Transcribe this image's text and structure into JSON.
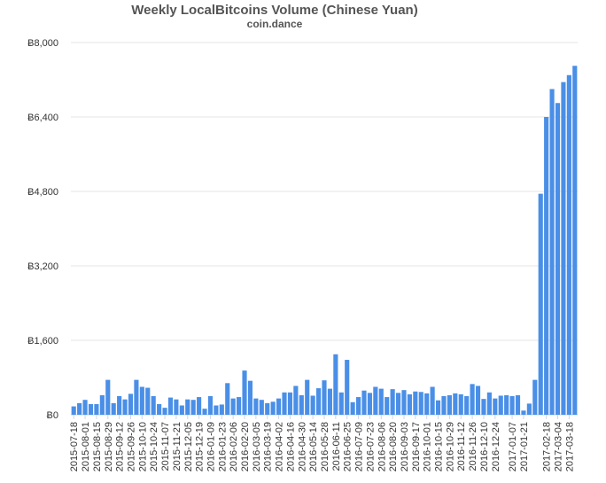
{
  "chart_data": {
    "type": "bar",
    "title": "Weekly LocalBitcoins Volume (Chinese Yuan)",
    "subtitle": "coin.dance",
    "categories": [
      "2015-07-18",
      null,
      "2015-08-01",
      null,
      "2015-08-15",
      null,
      "2015-08-29",
      null,
      "2015-09-12",
      null,
      "2015-09-26",
      null,
      "2015-10-10",
      null,
      "2015-10-24",
      null,
      "2015-11-07",
      null,
      "2015-11-21",
      null,
      "2015-12-05",
      null,
      "2015-12-19",
      null,
      "2016-01-09",
      null,
      "2016-01-23",
      null,
      "2016-02-06",
      null,
      "2016-02-20",
      null,
      "2016-03-05",
      null,
      "2016-03-19",
      null,
      "2016-04-02",
      null,
      "2016-04-16",
      null,
      "2016-04-30",
      null,
      "2016-05-14",
      null,
      "2016-05-28",
      null,
      "2016-06-11",
      null,
      "2016-06-25",
      null,
      "2016-07-09",
      null,
      "2016-07-23",
      null,
      "2016-08-06",
      null,
      "2016-08-20",
      null,
      "2016-09-03",
      null,
      "2016-09-17",
      null,
      "2016-10-01",
      null,
      "2016-10-15",
      null,
      "2016-10-29",
      null,
      "2016-11-12",
      null,
      "2016-11-26",
      null,
      "2016-12-10",
      null,
      "2016-12-24",
      null,
      null,
      "2017-01-07",
      null,
      "2017-01-21",
      null,
      null,
      null,
      "2017-02-18",
      null,
      "2017-03-04",
      null,
      "2017-03-18",
      null
    ],
    "values": [
      180,
      250,
      320,
      230,
      230,
      420,
      750,
      250,
      400,
      330,
      450,
      750,
      600,
      580,
      400,
      230,
      150,
      370,
      330,
      200,
      330,
      320,
      380,
      130,
      400,
      200,
      220,
      680,
      350,
      380,
      950,
      730,
      350,
      320,
      250,
      280,
      350,
      480,
      480,
      620,
      420,
      750,
      410,
      570,
      740,
      560,
      1300,
      480,
      1180,
      270,
      380,
      520,
      470,
      600,
      560,
      380,
      550,
      470,
      530,
      440,
      500,
      490,
      460,
      600,
      310,
      400,
      420,
      460,
      440,
      400,
      660,
      620,
      340,
      480,
      350,
      410,
      420,
      400,
      420,
      90,
      240,
      750,
      4750,
      6400,
      7000,
      6700,
      7150,
      7300,
      7500
    ],
    "color": "#4a8fe7",
    "ylim": [
      0,
      8000
    ],
    "yticks": [
      {
        "value": 0,
        "label": "Ƀ0"
      },
      {
        "value": 1600,
        "label": "Ƀ1,600"
      },
      {
        "value": 3200,
        "label": "Ƀ3,200"
      },
      {
        "value": 4800,
        "label": "Ƀ4,800"
      },
      {
        "value": 6400,
        "label": "Ƀ6,400"
      },
      {
        "value": 8000,
        "label": "Ƀ8,000"
      }
    ],
    "grid": true
  }
}
